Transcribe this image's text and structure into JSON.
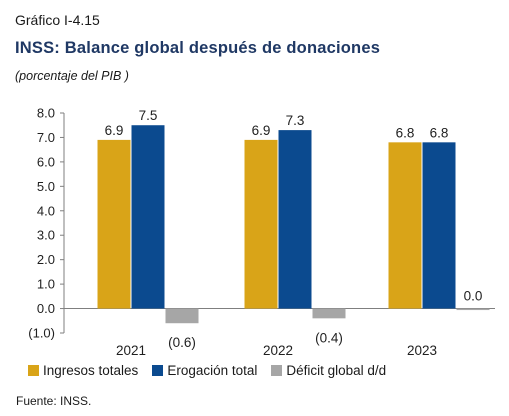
{
  "header": {
    "figure_label": "Gráfico I-4.15",
    "title": "INSS: Balance global después de donaciones",
    "subtitle": "(porcentaje del PIB )"
  },
  "source": "Fuente: INSS.",
  "colors": {
    "ingresos": "#D9A418",
    "erogacion": "#0B4A8F",
    "deficit": "#A6A6A6"
  },
  "chart_data": {
    "type": "bar",
    "categories": [
      "2021",
      "2022",
      "2023"
    ],
    "series": [
      {
        "name": "Ingresos totales",
        "values": [
          6.9,
          6.9,
          6.8
        ],
        "labels": [
          "6.9",
          "6.9",
          "6.8"
        ]
      },
      {
        "name": "Erogación total",
        "values": [
          7.5,
          7.3,
          6.8
        ],
        "labels": [
          "7.5",
          "7.3",
          "6.8"
        ]
      },
      {
        "name": "Déficit global d/d",
        "values": [
          -0.6,
          -0.4,
          0.0
        ],
        "labels": [
          "(0.6)",
          "(0.4)",
          "0.0"
        ]
      }
    ],
    "ylim": [
      -1.0,
      8.0
    ],
    "yticks": [
      8.0,
      7.0,
      6.0,
      5.0,
      4.0,
      3.0,
      2.0,
      1.0,
      0.0,
      -1.0
    ],
    "ytick_labels": [
      "8.0",
      "7.0",
      "6.0",
      "5.0",
      "4.0",
      "3.0",
      "2.0",
      "1.0",
      "0.0",
      "(1.0)"
    ],
    "legend_position": "bottom"
  }
}
